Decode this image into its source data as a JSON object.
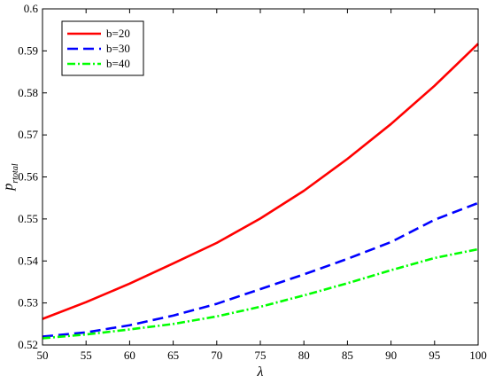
{
  "chart_data": {
    "type": "line",
    "title": "",
    "xlabel": "λ",
    "ylabel_main": "p",
    "ylabel_sub": "rtotal",
    "xlim": [
      50,
      100
    ],
    "ylim": [
      0.52,
      0.6
    ],
    "xticks": [
      50,
      55,
      60,
      65,
      70,
      75,
      80,
      85,
      90,
      95,
      100
    ],
    "yticks": [
      0.52,
      0.53,
      0.54,
      0.55,
      0.56,
      0.57,
      0.58,
      0.59,
      0.6
    ],
    "ytick_labels": [
      "0.52",
      "0.53",
      "0.54",
      "0.55",
      "0.56",
      "0.57",
      "0.58",
      "0.59",
      "0.6"
    ],
    "grid": false,
    "legend_position": "top-left",
    "x": [
      50,
      55,
      60,
      65,
      70,
      75,
      80,
      85,
      90,
      95,
      100
    ],
    "series": [
      {
        "name": "b=20",
        "color": "#ff0000",
        "style": "solid",
        "values": [
          0.5262,
          0.5302,
          0.5346,
          0.5394,
          0.5443,
          0.5501,
          0.5567,
          0.5643,
          0.5726,
          0.5817,
          0.5917
        ]
      },
      {
        "name": "b=30",
        "color": "#0000ff",
        "style": "dashed",
        "values": [
          0.522,
          0.523,
          0.5247,
          0.527,
          0.5298,
          0.5333,
          0.5368,
          0.5405,
          0.5445,
          0.5498,
          0.5538
        ]
      },
      {
        "name": "b=40",
        "color": "#00ff00",
        "style": "dashdot",
        "values": [
          0.5216,
          0.5225,
          0.5237,
          0.525,
          0.5268,
          0.5291,
          0.5318,
          0.5347,
          0.5378,
          0.5407,
          0.5428
        ]
      }
    ]
  }
}
